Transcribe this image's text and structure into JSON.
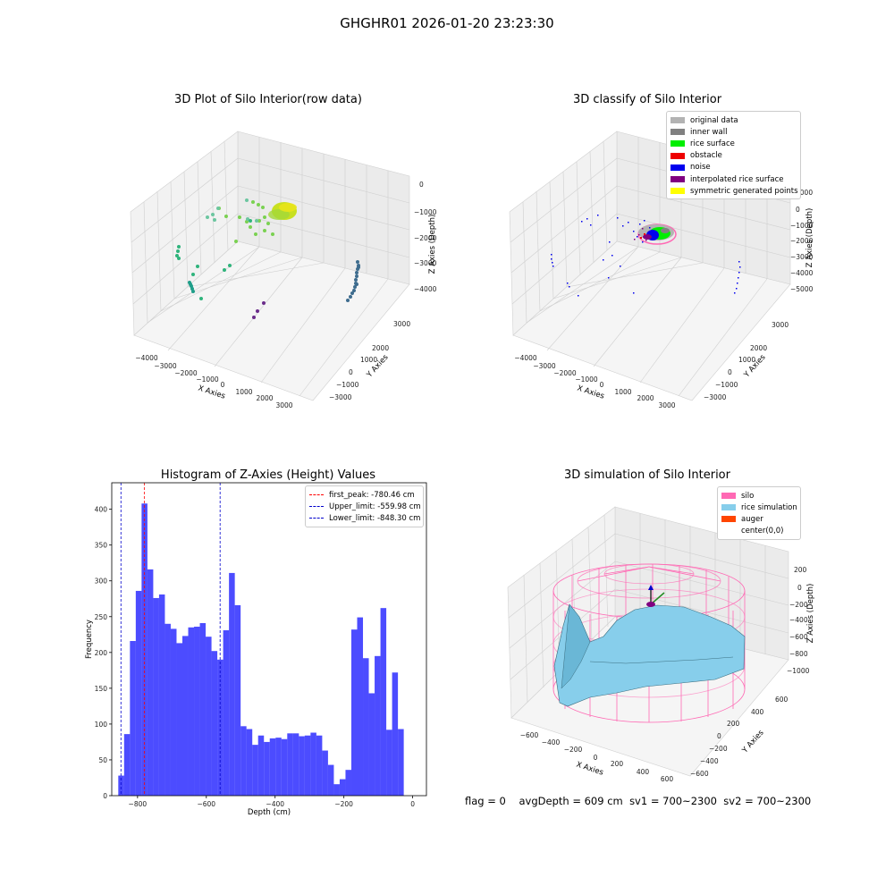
{
  "suptitle": "GHGHR01 2026-01-20 23:23:30",
  "panels": {
    "raw": {
      "title": "3D Plot of Silo Interior(row data)",
      "xlabel": "X Axies",
      "ylabel": "Y Axies",
      "zlabel": "Z Axies (Depth)",
      "xticks": [
        "−4000",
        "−3000",
        "−2000",
        "−1000",
        "0",
        "1000",
        "2000",
        "3000"
      ],
      "yticks": [
        "3000",
        "2000",
        "1000",
        "0",
        "−1000",
        "−2000",
        "−3000"
      ],
      "zticks": [
        "0",
        "−1000",
        "−2000",
        "−3000",
        "−4000"
      ]
    },
    "classify": {
      "title": "3D classify of Silo Interior",
      "xlabel": "X Axies",
      "ylabel": "Y Axies",
      "zlabel": "Z Axies (Depth)",
      "xticks": [
        "−4000",
        "−3000",
        "−2000",
        "−1000",
        "0",
        "1000",
        "2000",
        "3000"
      ],
      "yticks": [
        "3000",
        "2000",
        "1000",
        "0",
        "−1000",
        "−2000",
        "−3000"
      ],
      "zticks": [
        "1000",
        "0",
        "−1000",
        "−2000",
        "−3000",
        "−4000",
        "−5000"
      ],
      "legend": [
        {
          "label": "original data",
          "color": "#b3b3b3"
        },
        {
          "label": "inner wall",
          "color": "#808080"
        },
        {
          "label": "rice surface",
          "color": "#00ee00"
        },
        {
          "label": "obstacle",
          "color": "#ee0000"
        },
        {
          "label": "noise",
          "color": "#0000ee"
        },
        {
          "label": "interpolated rice surface",
          "color": "#800080"
        },
        {
          "label": "symmetric generated points",
          "color": "#ffff00"
        }
      ]
    },
    "simulation": {
      "title": "3D simulation of Silo Interior",
      "xlabel": "X Axies",
      "ylabel": "Y Axies",
      "zlabel": "Z Axies (Depth)",
      "xticks": [
        "−600",
        "−400",
        "−200",
        "0",
        "200",
        "400",
        "600"
      ],
      "yticks": [
        "600",
        "400",
        "200",
        "0",
        "−200",
        "−400",
        "−600"
      ],
      "zticks": [
        "200",
        "0",
        "−200",
        "−400",
        "−600",
        "−800",
        "−1000"
      ],
      "legend": [
        {
          "label": "silo",
          "color": "#ff69b4"
        },
        {
          "label": "rice simulation",
          "color": "#87ceeb"
        },
        {
          "label": "auger",
          "color": "#ff4500"
        },
        {
          "label": "center(0,0)",
          "color": "#ffffff"
        }
      ]
    }
  },
  "chart_data": [
    {
      "type": "bar",
      "title": "Histogram of Z-Axies (Height) Values",
      "xlabel": "Depth (cm)",
      "ylabel": "Frequency",
      "xlim": [
        -875,
        40
      ],
      "ylim": [
        0,
        437
      ],
      "xticks": [
        -800,
        -600,
        -400,
        -200,
        0
      ],
      "yticks": [
        0,
        50,
        100,
        150,
        200,
        250,
        300,
        350,
        400
      ],
      "bin_start": -856,
      "bin_width": 16.94,
      "values": [
        28,
        86,
        216,
        286,
        408,
        316,
        276,
        281,
        240,
        233,
        213,
        223,
        235,
        236,
        241,
        222,
        202,
        190,
        231,
        311,
        266,
        97,
        93,
        71,
        84,
        75,
        80,
        81,
        79,
        87,
        87,
        83,
        84,
        88,
        84,
        63,
        43,
        16,
        23,
        36,
        232,
        249,
        192,
        143,
        195,
        262,
        92,
        172,
        93
      ],
      "series_color": "#0000ff",
      "lines": [
        {
          "label": "first_peak: -780.46 cm",
          "value": -780.46,
          "color": "#ff0000"
        },
        {
          "label": "Upper_limit: -559.98 cm",
          "value": -559.98,
          "color": "#0000cc"
        },
        {
          "label": "Lower_limit: -848.30 cm",
          "value": -848.3,
          "color": "#0000cc"
        }
      ],
      "legend_position": "top-right"
    }
  ],
  "footer": {
    "flag": "flag = 0",
    "avg": "avgDepth = 609 cm",
    "sv1": "sv1 = 700~2300",
    "sv2": "sv2 = 700~2300"
  }
}
